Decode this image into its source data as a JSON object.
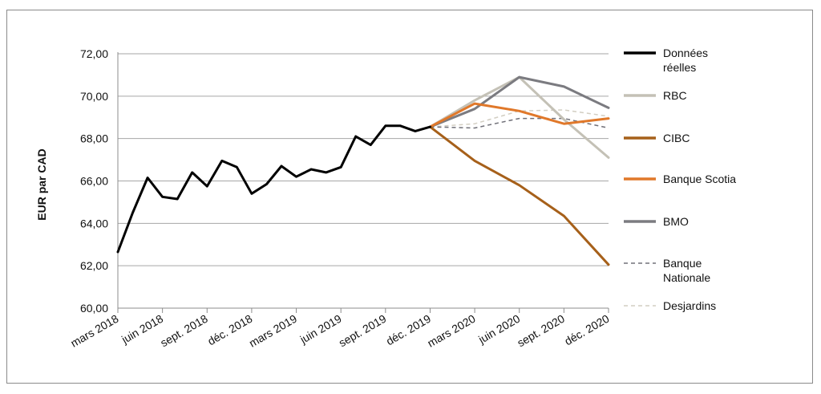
{
  "chart_data": {
    "type": "line",
    "title": "",
    "xlabel": "",
    "ylabel": "EUR par CAD",
    "ylim": [
      60,
      72
    ],
    "yticks": [
      "60,00",
      "62,00",
      "64,00",
      "66,00",
      "68,00",
      "70,00",
      "72,00"
    ],
    "xticks": [
      "mars 2018",
      "juin 2018",
      "sept. 2018",
      "déc. 2018",
      "mars 2019",
      "juin 2019",
      "sept. 2019",
      "déc. 2019",
      "mars 2020",
      "juin 2020",
      "sept. 2020",
      "déc. 2020"
    ],
    "grid": "horizontal",
    "legend_position": "right",
    "series": [
      {
        "name": "Données réelles",
        "color": "#000000",
        "style": "solid",
        "x": [
          "mars 2018",
          "avr. 2018",
          "mai 2018",
          "juin 2018",
          "juil. 2018",
          "août 2018",
          "sept. 2018",
          "oct. 2018",
          "nov. 2018",
          "déc. 2018",
          "janv. 2019",
          "févr. 2019",
          "mars 2019",
          "avr. 2019",
          "mai 2019",
          "juin 2019",
          "juil. 2019",
          "août 2019",
          "sept. 2019",
          "oct. 2019",
          "nov. 2019",
          "déc. 2019"
        ],
        "values": [
          62.65,
          64.5,
          66.15,
          65.25,
          65.15,
          66.4,
          65.75,
          66.95,
          66.65,
          65.4,
          65.85,
          66.7,
          66.2,
          66.55,
          66.4,
          66.65,
          68.1,
          67.7,
          68.6,
          68.6,
          68.35,
          68.55
        ]
      },
      {
        "name": "RBC",
        "color": "#c4c1b6",
        "style": "solid",
        "x": [
          "déc. 2019",
          "mars 2020",
          "juin 2020",
          "sept. 2020",
          "déc. 2020"
        ],
        "values": [
          68.55,
          69.8,
          70.9,
          68.9,
          67.1
        ]
      },
      {
        "name": "CIBC",
        "color": "#a6601a",
        "style": "solid",
        "x": [
          "déc. 2019",
          "mars 2020",
          "juin 2020",
          "sept. 2020",
          "déc. 2020"
        ],
        "values": [
          68.55,
          66.95,
          65.8,
          64.35,
          62.05
        ]
      },
      {
        "name": "Banque Scotia",
        "color": "#e0782a",
        "style": "solid",
        "x": [
          "déc. 2019",
          "mars 2020",
          "juin 2020",
          "sept. 2020",
          "déc. 2020"
        ],
        "values": [
          68.55,
          69.65,
          69.3,
          68.7,
          68.95
        ]
      },
      {
        "name": "BMO",
        "color": "#7b7b80",
        "style": "solid",
        "x": [
          "déc. 2019",
          "mars 2020",
          "juin 2020",
          "sept. 2020",
          "déc. 2020"
        ],
        "values": [
          68.55,
          69.4,
          70.9,
          70.45,
          69.45
        ]
      },
      {
        "name": "Banque Nationale",
        "color": "#707078",
        "style": "dashed",
        "x": [
          "déc. 2019",
          "mars 2020",
          "juin 2020",
          "sept. 2020",
          "déc. 2020"
        ],
        "values": [
          68.55,
          68.5,
          68.95,
          68.95,
          68.5
        ]
      },
      {
        "name": "Desjardins",
        "color": "#d2cec2",
        "style": "dashed",
        "x": [
          "déc. 2019",
          "mars 2020",
          "juin 2020",
          "sept. 2020",
          "déc. 2020"
        ],
        "values": [
          68.55,
          68.7,
          69.3,
          69.35,
          69.05
        ]
      }
    ],
    "legend": [
      [
        "Données",
        "réelles"
      ],
      [
        "RBC"
      ],
      [
        "CIBC"
      ],
      [
        "Banque Scotia"
      ],
      [
        "BMO"
      ],
      [
        "Banque",
        "Nationale"
      ],
      [
        "Desjardins"
      ]
    ]
  }
}
